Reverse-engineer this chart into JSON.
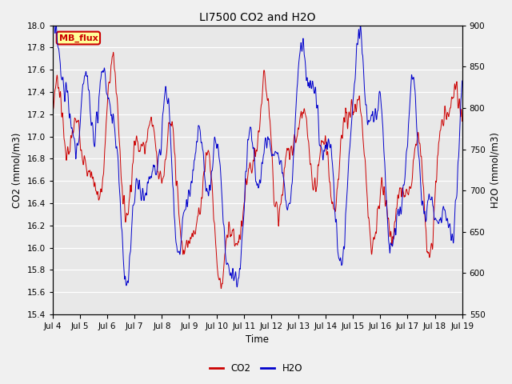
{
  "title": "LI7500 CO2 and H2O",
  "xlabel": "Time",
  "ylabel_left": "CO2 (mmol/m3)",
  "ylabel_right": "H2O (mmol/m3)",
  "ylim_left": [
    15.4,
    18.0
  ],
  "ylim_right": [
    550,
    900
  ],
  "co2_color": "#cc0000",
  "h2o_color": "#0000cc",
  "plot_bg_color": "#e8e8e8",
  "fig_bg_color": "#f0f0f0",
  "annotation_text": "MB_flux",
  "annotation_bg": "#ffff99",
  "annotation_border": "#cc0000",
  "annotation_text_color": "#cc0000",
  "x_tick_labels": [
    "Jul 4",
    "Jul 5",
    "Jul 6",
    "Jul 7",
    "Jul 8",
    "Jul 9",
    "Jul 10",
    "Jul 11",
    "Jul 12",
    "Jul 13",
    "Jul 14",
    "Jul 15",
    "Jul 16",
    "Jul 17",
    "Jul 18",
    "Jul 19"
  ],
  "co2_yticks": [
    15.4,
    15.6,
    15.8,
    16.0,
    16.2,
    16.4,
    16.6,
    16.8,
    17.0,
    17.2,
    17.4,
    17.6,
    17.8,
    18.0
  ],
  "h2o_yticks": [
    550,
    600,
    650,
    700,
    750,
    800,
    850,
    900
  ],
  "n_points": 2000,
  "seed": 7
}
